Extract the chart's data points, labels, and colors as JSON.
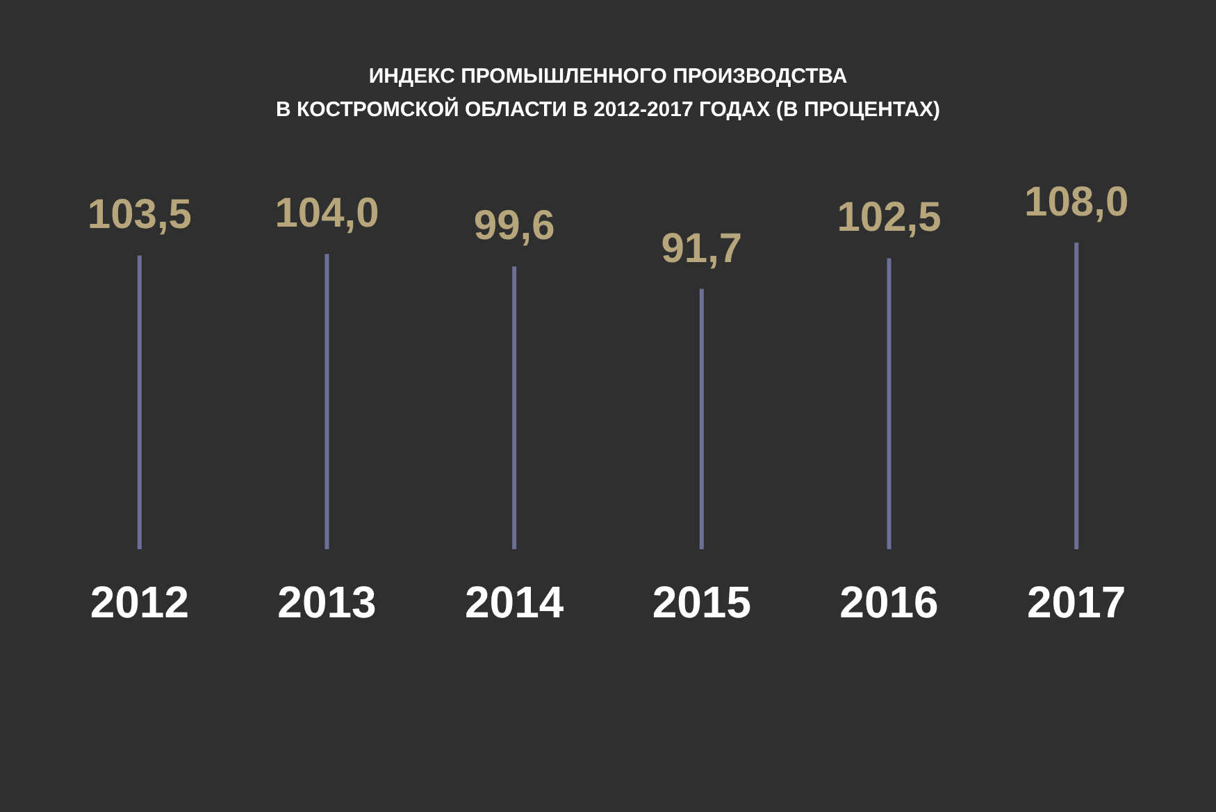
{
  "chart_data": {
    "type": "bar",
    "title": "ИНДЕКС ПРОМЫШЛЕННОГО ПРОИЗВОДСТВА\nВ КОСТРОМСКОЙ ОБЛАСТИ В 2012-2017 ГОДАХ (В ПРОЦЕНТАХ)",
    "categories": [
      "2012",
      "2013",
      "2014",
      "2015",
      "2016",
      "2017"
    ],
    "values": [
      103.5,
      104.0,
      99.6,
      91.7,
      102.5,
      108.0
    ],
    "value_labels": [
      "103,5",
      "104,0",
      "99,6",
      "91,7",
      "102,5",
      "108,0"
    ],
    "color": "#6c7096",
    "tick_labels": "x"
  }
}
